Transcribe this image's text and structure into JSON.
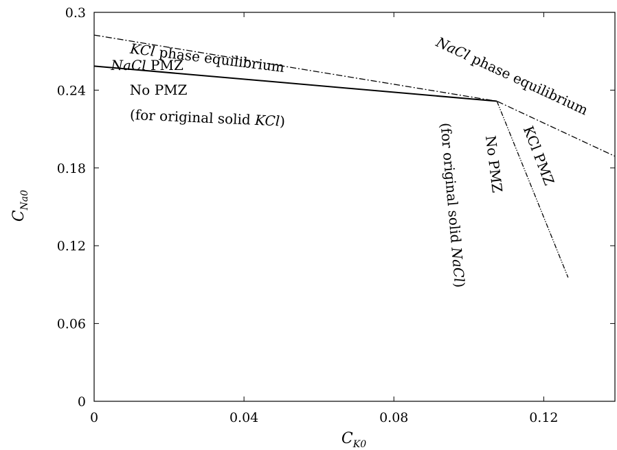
{
  "chart_data": {
    "type": "line",
    "xlabel": {
      "base": "C",
      "sub": "K0"
    },
    "ylabel": {
      "base": "C",
      "sub": "Na0"
    },
    "xlim": [
      0,
      0.139
    ],
    "ylim": [
      0,
      0.3
    ],
    "xticks": [
      {
        "value": 0,
        "label": "0"
      },
      {
        "value": 0.04,
        "label": "0.04"
      },
      {
        "value": 0.08,
        "label": "0.08"
      },
      {
        "value": 0.12,
        "label": "0.12"
      }
    ],
    "yticks": [
      {
        "value": 0,
        "label": "0"
      },
      {
        "value": 0.06,
        "label": "0.06"
      },
      {
        "value": 0.12,
        "label": "0.12"
      },
      {
        "value": 0.18,
        "label": "0.18"
      },
      {
        "value": 0.24,
        "label": "0.24"
      },
      {
        "value": 0.3,
        "label": "0.3"
      }
    ],
    "grid": false,
    "series": [
      {
        "style": "solid",
        "x": [
          0,
          0.1075
        ],
        "y": [
          0.2585,
          0.2315
        ]
      },
      {
        "style": "dash-dot",
        "x": [
          0,
          0.1075,
          0.139
        ],
        "y": [
          0.2825,
          0.2315,
          0.189
        ]
      },
      {
        "style": "dash-dot-dot",
        "x": [
          0.1075,
          0.1265
        ],
        "y": [
          0.2315,
          0.0955
        ]
      }
    ],
    "annotations": [
      {
        "id": "kcl-phase-eq",
        "italic": "KCl",
        "text": " phase equilibrium",
        "x": 0.0095,
        "y": 0.2685,
        "angle": 7.0
      },
      {
        "id": "nacl-pmz-upper",
        "italic": "NaCl",
        "text": " PMZ",
        "x": 0.0045,
        "y": 0.2555,
        "angle": 0
      },
      {
        "id": "no-pmz-upper",
        "italic": "",
        "text": "No PMZ",
        "x": 0.0095,
        "y": 0.2365,
        "angle": 0
      },
      {
        "id": "for-original-kcl",
        "prefix": "(for original solid ",
        "italic": "KCl",
        "suffix": ")",
        "x": 0.0095,
        "y": 0.2175,
        "angle": 2.5
      },
      {
        "id": "nacl-phase-eq",
        "italic": "NaCl",
        "text": " phase equilibrium",
        "x": 0.091,
        "y": 0.2745,
        "angle": 25.0
      },
      {
        "id": "kcl-pmz-right",
        "italic": "",
        "text": "KCl PMZ",
        "x": 0.1145,
        "y": 0.2105,
        "angle": 69.0
      },
      {
        "id": "no-pmz-right",
        "italic": "",
        "text": "No PMZ",
        "x": 0.1045,
        "y": 0.2045,
        "angle": 83.0
      },
      {
        "id": "for-original-nacl",
        "prefix": "(for original solid ",
        "italic": "NaCl",
        "suffix": ")",
        "x": 0.0925,
        "y": 0.2145,
        "angle": 85.0
      }
    ]
  }
}
